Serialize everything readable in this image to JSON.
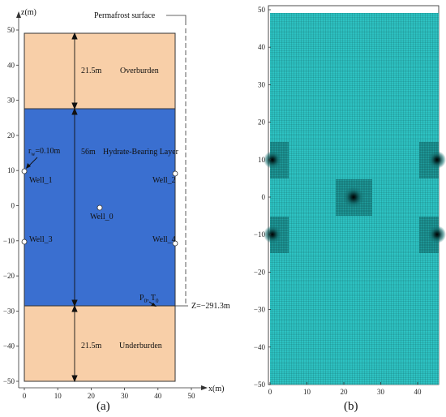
{
  "panel_a": {
    "caption": "(a)",
    "x_axis_label": "x(m)",
    "y_axis_label": "z(m)",
    "y_ticks": [
      "50",
      "40",
      "30",
      "20",
      "10",
      "0",
      "−10",
      "−20",
      "−30",
      "−40",
      "−50"
    ],
    "x_ticks": [
      "0",
      "10",
      "20",
      "30",
      "40",
      "50"
    ],
    "permafrost_label": "Permafrost surface",
    "overburden_thickness": "21.5m",
    "overburden_label": "Overburden",
    "hbl_thickness": "56m",
    "hbl_label": "Hydrate-Bearing Layer",
    "underburden_thickness": "21.5m",
    "underburden_label": "Underburden",
    "rw_label": "r",
    "rw_sub": "w",
    "rw_value": "=0.10m",
    "wells": [
      "Well_1",
      "Well_2",
      "Well_0",
      "Well_3",
      "Well_4"
    ],
    "p0": "P",
    "p0_sub": "0",
    "t0": "T",
    "t0_sub": "0",
    "depth_label": "Z=−291.3m",
    "colors": {
      "burden": "#f8cfa8",
      "hbl": "#3a6fd0"
    }
  },
  "panel_b": {
    "caption": "(b)",
    "y_ticks": [
      "50",
      "40",
      "30",
      "20",
      "10",
      "0",
      "−10",
      "−20",
      "−30",
      "−40",
      "−50"
    ],
    "x_ticks": [
      "0",
      "10",
      "20",
      "30",
      "40"
    ],
    "colors": {
      "mesh": "#2ec4c4",
      "line": "#0d4a4a"
    }
  }
}
